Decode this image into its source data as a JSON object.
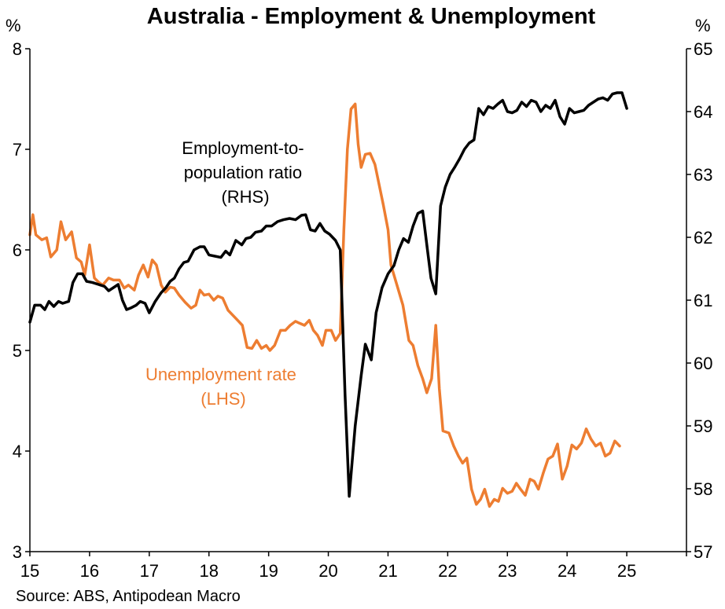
{
  "chart_data": {
    "type": "line",
    "title": "Australia - Employment & Unemployment",
    "source": "Source: ABS, Antipodean Macro",
    "left_axis": {
      "unit": "%",
      "ylim": [
        3,
        8
      ],
      "ticks": [
        "3",
        "4",
        "5",
        "6",
        "7",
        "8"
      ]
    },
    "right_axis": {
      "unit": "%",
      "ylim": [
        57,
        65
      ],
      "ticks": [
        "57",
        "58",
        "59",
        "60",
        "61",
        "62",
        "63",
        "64",
        "65"
      ]
    },
    "x_axis": {
      "xlim": [
        2015,
        2026
      ],
      "ticks": [
        "15",
        "16",
        "17",
        "18",
        "19",
        "20",
        "21",
        "22",
        "23",
        "24",
        "25"
      ]
    },
    "colors": {
      "unemployment": "#ED7D31",
      "employment": "#000000"
    },
    "annotations": {
      "employment": [
        "Employment-to-",
        "population ratio",
        "(RHS)"
      ],
      "unemployment": [
        "Unemployment rate",
        "(LHS)"
      ]
    },
    "series": [
      {
        "name": "Unemployment rate (LHS)",
        "axis": "left",
        "points": [
          [
            2015.0,
            6.15
          ],
          [
            2015.05,
            6.35
          ],
          [
            2015.1,
            6.15
          ],
          [
            2015.2,
            6.1
          ],
          [
            2015.28,
            6.12
          ],
          [
            2015.35,
            5.93
          ],
          [
            2015.45,
            6.0
          ],
          [
            2015.52,
            6.28
          ],
          [
            2015.6,
            6.1
          ],
          [
            2015.7,
            6.18
          ],
          [
            2015.78,
            5.92
          ],
          [
            2015.86,
            5.88
          ],
          [
            2015.92,
            5.75
          ],
          [
            2016.0,
            6.05
          ],
          [
            2016.08,
            5.72
          ],
          [
            2016.15,
            5.68
          ],
          [
            2016.22,
            5.65
          ],
          [
            2016.32,
            5.72
          ],
          [
            2016.4,
            5.7
          ],
          [
            2016.5,
            5.7
          ],
          [
            2016.58,
            5.62
          ],
          [
            2016.65,
            5.65
          ],
          [
            2016.75,
            5.6
          ],
          [
            2016.82,
            5.75
          ],
          [
            2016.9,
            5.85
          ],
          [
            2016.98,
            5.73
          ],
          [
            2017.05,
            5.9
          ],
          [
            2017.12,
            5.85
          ],
          [
            2017.2,
            5.65
          ],
          [
            2017.27,
            5.58
          ],
          [
            2017.35,
            5.63
          ],
          [
            2017.42,
            5.62
          ],
          [
            2017.5,
            5.55
          ],
          [
            2017.6,
            5.48
          ],
          [
            2017.7,
            5.42
          ],
          [
            2017.78,
            5.45
          ],
          [
            2017.85,
            5.6
          ],
          [
            2017.92,
            5.55
          ],
          [
            2018.0,
            5.56
          ],
          [
            2018.08,
            5.5
          ],
          [
            2018.15,
            5.54
          ],
          [
            2018.23,
            5.52
          ],
          [
            2018.32,
            5.4
          ],
          [
            2018.4,
            5.35
          ],
          [
            2018.48,
            5.3
          ],
          [
            2018.56,
            5.25
          ],
          [
            2018.64,
            5.03
          ],
          [
            2018.72,
            5.02
          ],
          [
            2018.8,
            5.1
          ],
          [
            2018.88,
            5.02
          ],
          [
            2018.96,
            5.05
          ],
          [
            2019.02,
            5.0
          ],
          [
            2019.1,
            5.05
          ],
          [
            2019.2,
            5.2
          ],
          [
            2019.28,
            5.2
          ],
          [
            2019.36,
            5.25
          ],
          [
            2019.45,
            5.29
          ],
          [
            2019.52,
            5.27
          ],
          [
            2019.6,
            5.25
          ],
          [
            2019.68,
            5.3
          ],
          [
            2019.75,
            5.2
          ],
          [
            2019.82,
            5.15
          ],
          [
            2019.9,
            5.05
          ],
          [
            2019.96,
            5.2
          ],
          [
            2020.05,
            5.2
          ],
          [
            2020.12,
            5.1
          ],
          [
            2020.2,
            5.17
          ],
          [
            2020.26,
            6.2
          ],
          [
            2020.32,
            7.0
          ],
          [
            2020.38,
            7.4
          ],
          [
            2020.45,
            7.45
          ],
          [
            2020.5,
            7.05
          ],
          [
            2020.55,
            6.82
          ],
          [
            2020.62,
            6.95
          ],
          [
            2020.7,
            6.96
          ],
          [
            2020.78,
            6.85
          ],
          [
            2020.85,
            6.65
          ],
          [
            2020.92,
            6.45
          ],
          [
            2021.0,
            6.2
          ],
          [
            2021.05,
            5.85
          ],
          [
            2021.15,
            5.65
          ],
          [
            2021.25,
            5.45
          ],
          [
            2021.35,
            5.1
          ],
          [
            2021.42,
            5.05
          ],
          [
            2021.5,
            4.85
          ],
          [
            2021.58,
            4.72
          ],
          [
            2021.65,
            4.58
          ],
          [
            2021.73,
            4.72
          ],
          [
            2021.8,
            5.25
          ],
          [
            2021.86,
            4.62
          ],
          [
            2021.92,
            4.2
          ],
          [
            2022.02,
            4.18
          ],
          [
            2022.1,
            4.05
          ],
          [
            2022.18,
            3.95
          ],
          [
            2022.25,
            3.88
          ],
          [
            2022.32,
            3.93
          ],
          [
            2022.4,
            3.62
          ],
          [
            2022.48,
            3.47
          ],
          [
            2022.55,
            3.52
          ],
          [
            2022.62,
            3.62
          ],
          [
            2022.7,
            3.45
          ],
          [
            2022.78,
            3.52
          ],
          [
            2022.85,
            3.5
          ],
          [
            2022.92,
            3.63
          ],
          [
            2023.0,
            3.58
          ],
          [
            2023.08,
            3.6
          ],
          [
            2023.15,
            3.68
          ],
          [
            2023.22,
            3.62
          ],
          [
            2023.3,
            3.56
          ],
          [
            2023.38,
            3.72
          ],
          [
            2023.45,
            3.7
          ],
          [
            2023.52,
            3.62
          ],
          [
            2023.6,
            3.78
          ],
          [
            2023.68,
            3.92
          ],
          [
            2023.76,
            3.95
          ],
          [
            2023.84,
            4.07
          ],
          [
            2023.92,
            3.72
          ],
          [
            2024.0,
            3.85
          ],
          [
            2024.08,
            4.06
          ],
          [
            2024.16,
            4.02
          ],
          [
            2024.24,
            4.08
          ],
          [
            2024.32,
            4.22
          ],
          [
            2024.4,
            4.12
          ],
          [
            2024.48,
            4.05
          ],
          [
            2024.56,
            4.08
          ],
          [
            2024.64,
            3.95
          ],
          [
            2024.72,
            3.98
          ],
          [
            2024.8,
            4.1
          ],
          [
            2024.88,
            4.05
          ]
        ]
      },
      {
        "name": "Employment-to-population ratio (RHS)",
        "axis": "right",
        "points": [
          [
            2015.0,
            60.65
          ],
          [
            2015.08,
            60.92
          ],
          [
            2015.18,
            60.92
          ],
          [
            2015.25,
            60.85
          ],
          [
            2015.32,
            60.98
          ],
          [
            2015.4,
            60.9
          ],
          [
            2015.48,
            60.98
          ],
          [
            2015.55,
            60.95
          ],
          [
            2015.65,
            60.98
          ],
          [
            2015.72,
            61.28
          ],
          [
            2015.8,
            61.42
          ],
          [
            2015.88,
            61.42
          ],
          [
            2015.95,
            61.3
          ],
          [
            2016.05,
            61.28
          ],
          [
            2016.15,
            61.25
          ],
          [
            2016.25,
            61.22
          ],
          [
            2016.32,
            61.15
          ],
          [
            2016.4,
            61.2
          ],
          [
            2016.48,
            61.25
          ],
          [
            2016.55,
            61.0
          ],
          [
            2016.62,
            60.85
          ],
          [
            2016.7,
            60.88
          ],
          [
            2016.78,
            60.92
          ],
          [
            2016.85,
            60.98
          ],
          [
            2016.93,
            60.95
          ],
          [
            2017.0,
            60.8
          ],
          [
            2017.1,
            60.98
          ],
          [
            2017.2,
            61.12
          ],
          [
            2017.28,
            61.2
          ],
          [
            2017.35,
            61.3
          ],
          [
            2017.42,
            61.35
          ],
          [
            2017.5,
            61.5
          ],
          [
            2017.58,
            61.6
          ],
          [
            2017.65,
            61.62
          ],
          [
            2017.75,
            61.8
          ],
          [
            2017.85,
            61.85
          ],
          [
            2017.92,
            61.85
          ],
          [
            2018.0,
            61.72
          ],
          [
            2018.1,
            61.7
          ],
          [
            2018.2,
            61.68
          ],
          [
            2018.28,
            61.78
          ],
          [
            2018.35,
            61.72
          ],
          [
            2018.45,
            61.95
          ],
          [
            2018.55,
            61.88
          ],
          [
            2018.62,
            61.98
          ],
          [
            2018.7,
            62.0
          ],
          [
            2018.78,
            62.08
          ],
          [
            2018.88,
            62.1
          ],
          [
            2018.96,
            62.18
          ],
          [
            2019.05,
            62.18
          ],
          [
            2019.15,
            62.25
          ],
          [
            2019.25,
            62.28
          ],
          [
            2019.35,
            62.3
          ],
          [
            2019.45,
            62.28
          ],
          [
            2019.55,
            62.35
          ],
          [
            2019.62,
            62.36
          ],
          [
            2019.7,
            62.12
          ],
          [
            2019.78,
            62.1
          ],
          [
            2019.86,
            62.22
          ],
          [
            2019.94,
            62.1
          ],
          [
            2020.02,
            62.05
          ],
          [
            2020.12,
            61.95
          ],
          [
            2020.2,
            61.8
          ],
          [
            2020.28,
            59.5
          ],
          [
            2020.35,
            57.88
          ],
          [
            2020.45,
            59.0
          ],
          [
            2020.55,
            59.8
          ],
          [
            2020.62,
            60.3
          ],
          [
            2020.72,
            60.05
          ],
          [
            2020.8,
            60.8
          ],
          [
            2020.9,
            61.2
          ],
          [
            2021.0,
            61.42
          ],
          [
            2021.1,
            61.55
          ],
          [
            2021.18,
            61.8
          ],
          [
            2021.26,
            61.98
          ],
          [
            2021.34,
            61.92
          ],
          [
            2021.42,
            62.18
          ],
          [
            2021.5,
            62.38
          ],
          [
            2021.58,
            62.42
          ],
          [
            2021.66,
            61.8
          ],
          [
            2021.72,
            61.35
          ],
          [
            2021.8,
            61.1
          ],
          [
            2021.88,
            62.5
          ],
          [
            2021.96,
            62.8
          ],
          [
            2022.04,
            63.0
          ],
          [
            2022.12,
            63.12
          ],
          [
            2022.2,
            63.25
          ],
          [
            2022.28,
            63.4
          ],
          [
            2022.36,
            63.5
          ],
          [
            2022.44,
            63.55
          ],
          [
            2022.52,
            64.05
          ],
          [
            2022.6,
            63.95
          ],
          [
            2022.68,
            64.08
          ],
          [
            2022.76,
            64.05
          ],
          [
            2022.84,
            64.12
          ],
          [
            2022.92,
            64.18
          ],
          [
            2023.0,
            64.0
          ],
          [
            2023.08,
            63.98
          ],
          [
            2023.16,
            64.02
          ],
          [
            2023.24,
            64.15
          ],
          [
            2023.32,
            64.08
          ],
          [
            2023.4,
            64.18
          ],
          [
            2023.48,
            64.15
          ],
          [
            2023.56,
            64.0
          ],
          [
            2023.64,
            64.1
          ],
          [
            2023.72,
            64.05
          ],
          [
            2023.8,
            64.18
          ],
          [
            2023.88,
            63.92
          ],
          [
            2023.96,
            63.8
          ],
          [
            2024.04,
            64.05
          ],
          [
            2024.12,
            63.98
          ],
          [
            2024.2,
            64.0
          ],
          [
            2024.28,
            64.02
          ],
          [
            2024.36,
            64.1
          ],
          [
            2024.44,
            64.15
          ],
          [
            2024.52,
            64.2
          ],
          [
            2024.6,
            64.22
          ],
          [
            2024.68,
            64.18
          ],
          [
            2024.76,
            64.28
          ],
          [
            2024.84,
            64.3
          ],
          [
            2024.92,
            64.3
          ],
          [
            2025.0,
            64.05
          ]
        ]
      }
    ]
  }
}
